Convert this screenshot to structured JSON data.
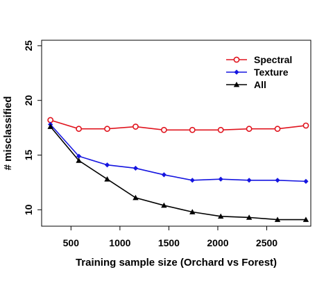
{
  "chart_data": {
    "type": "line",
    "title": "",
    "xlabel": "Training sample size (Orchard vs Forest)",
    "ylabel": "# misclassified",
    "xlim": [
      200,
      2950
    ],
    "ylim": [
      8.5,
      25.5
    ],
    "x": [
      290,
      580,
      870,
      1160,
      1450,
      1740,
      2030,
      2320,
      2610,
      2900
    ],
    "x_ticks": [
      500,
      1000,
      1500,
      2000,
      2500
    ],
    "y_ticks": [
      10,
      15,
      20,
      25
    ],
    "legend_position": "top-right",
    "grid": false,
    "series": [
      {
        "name": "Spectral",
        "color": "#e0141e",
        "marker": "open-circle",
        "values": [
          18.2,
          17.4,
          17.4,
          17.6,
          17.3,
          17.3,
          17.3,
          17.4,
          17.4,
          17.7
        ]
      },
      {
        "name": "Texture",
        "color": "#1515e0",
        "marker": "filled-diamond",
        "values": [
          17.8,
          14.9,
          14.1,
          13.8,
          13.2,
          12.7,
          12.8,
          12.7,
          12.7,
          12.6
        ]
      },
      {
        "name": "All",
        "color": "#000000",
        "marker": "filled-triangle",
        "values": [
          17.6,
          14.5,
          12.8,
          11.1,
          10.4,
          9.8,
          9.4,
          9.3,
          9.1,
          9.1
        ]
      }
    ]
  }
}
